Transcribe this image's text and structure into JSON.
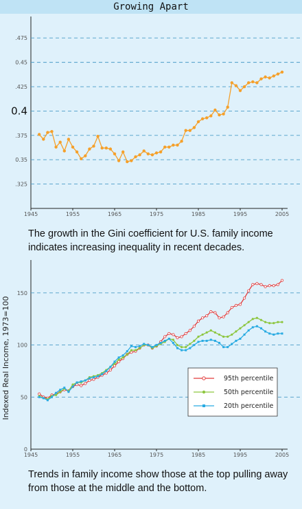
{
  "page": {
    "title": "Growing Apart",
    "caption1": "The growth in the Gini coefficient for U.S. family income indicates increasing inequality in recent decades.",
    "caption2": "Trends in family income show those at the top pulling away from those at the middle and the bottom."
  },
  "colors": {
    "background": "#dff1fb",
    "title_bar": "#bfe3f5",
    "gini": "#f5a02a",
    "p95": "#e23b3b",
    "p50": "#8dc63f",
    "p20": "#29abe2",
    "gridline": "#4a9cc7"
  },
  "chart_data": [
    {
      "type": "line",
      "title": "",
      "xlabel": "",
      "ylabel": "",
      "xlim": [
        1945,
        2005
      ],
      "ylim": [
        0.3,
        0.49
      ],
      "grid": true,
      "x_ticks": [
        "1945",
        "1955",
        "1965",
        "1975",
        "1985",
        "1995",
        "2005"
      ],
      "y_ticks": [
        {
          "label": ".325",
          "value": 0.325,
          "big": false
        },
        {
          "label": "0.35",
          "value": 0.35,
          "big": false
        },
        {
          "label": ".375",
          "value": 0.375,
          "big": false
        },
        {
          "label": "0.4",
          "value": 0.4,
          "big": true
        },
        {
          "label": ".425",
          "value": 0.425,
          "big": false
        },
        {
          "label": "0.45",
          "value": 0.45,
          "big": false
        },
        {
          "label": ".475",
          "value": 0.475,
          "big": false
        }
      ],
      "series": [
        {
          "color": "#f5a02a",
          "x": [
            1947,
            1948,
            1949,
            1950,
            1951,
            1952,
            1953,
            1954,
            1955,
            1956,
            1957,
            1958,
            1959,
            1960,
            1961,
            1962,
            1963,
            1964,
            1965,
            1966,
            1967,
            1968,
            1969,
            1970,
            1971,
            1972,
            1973,
            1974,
            1975,
            1976,
            1977,
            1978,
            1979,
            1980,
            1981,
            1982,
            1983,
            1984,
            1985,
            1986,
            1987,
            1988,
            1989,
            1990,
            1991,
            1992,
            1993,
            1994,
            1995,
            1996,
            1997,
            1998,
            1999,
            2000,
            2001,
            2002,
            2003,
            2004,
            2005
          ],
          "y": [
            0.376,
            0.371,
            0.378,
            0.379,
            0.363,
            0.368,
            0.359,
            0.371,
            0.363,
            0.358,
            0.351,
            0.354,
            0.361,
            0.364,
            0.374,
            0.362,
            0.362,
            0.361,
            0.356,
            0.349,
            0.358,
            0.348,
            0.349,
            0.353,
            0.355,
            0.359,
            0.356,
            0.355,
            0.357,
            0.358,
            0.363,
            0.363,
            0.365,
            0.365,
            0.369,
            0.38,
            0.38,
            0.383,
            0.389,
            0.392,
            0.393,
            0.395,
            0.401,
            0.396,
            0.397,
            0.404,
            0.429,
            0.426,
            0.421,
            0.425,
            0.429,
            0.43,
            0.429,
            0.433,
            0.435,
            0.434,
            0.436,
            0.438,
            0.44
          ]
        }
      ]
    },
    {
      "type": "line",
      "title": "",
      "xlabel": "",
      "ylabel": "Indexed Real Income, 1973=100",
      "xlim": [
        1945,
        2005
      ],
      "ylim": [
        0,
        175
      ],
      "grid": true,
      "x_ticks": [
        "1945",
        "1955",
        "1965",
        "1975",
        "1985",
        "1995",
        "2005"
      ],
      "y_ticks": [
        {
          "label": "0",
          "value": 0
        },
        {
          "label": "50",
          "value": 50
        },
        {
          "label": "100",
          "value": 100
        },
        {
          "label": "150",
          "value": 150
        }
      ],
      "legend": "inside-right",
      "series": [
        {
          "name": "95th percentile",
          "color": "#e23b3b",
          "marker": "circle",
          "x": [
            1947,
            1948,
            1949,
            1950,
            1951,
            1952,
            1953,
            1954,
            1955,
            1956,
            1957,
            1958,
            1959,
            1960,
            1961,
            1962,
            1963,
            1964,
            1965,
            1966,
            1967,
            1968,
            1969,
            1970,
            1971,
            1972,
            1973,
            1974,
            1975,
            1976,
            1977,
            1978,
            1979,
            1980,
            1981,
            1982,
            1983,
            1984,
            1985,
            1986,
            1987,
            1988,
            1989,
            1990,
            1991,
            1992,
            1993,
            1994,
            1995,
            1996,
            1997,
            1998,
            1999,
            2000,
            2001,
            2002,
            2003,
            2004,
            2005
          ],
          "y": [
            53,
            50,
            49,
            52,
            53,
            55,
            57,
            56,
            60,
            62,
            61,
            63,
            66,
            67,
            69,
            71,
            73,
            76,
            80,
            84,
            87,
            91,
            93,
            94,
            97,
            100,
            100,
            97,
            99,
            103,
            108,
            111,
            110,
            107,
            108,
            111,
            114,
            118,
            123,
            126,
            128,
            132,
            131,
            126,
            127,
            131,
            136,
            138,
            139,
            145,
            152,
            158,
            159,
            158,
            156,
            157,
            157,
            158,
            162
          ]
        },
        {
          "name": "50th percentile",
          "color": "#8dc63f",
          "marker": "diamond",
          "x": [
            1947,
            1948,
            1949,
            1950,
            1951,
            1952,
            1953,
            1954,
            1955,
            1956,
            1957,
            1958,
            1959,
            1960,
            1961,
            1962,
            1963,
            1964,
            1965,
            1966,
            1967,
            1968,
            1969,
            1970,
            1971,
            1972,
            1973,
            1974,
            1975,
            1976,
            1977,
            1978,
            1979,
            1980,
            1981,
            1982,
            1983,
            1984,
            1985,
            1986,
            1987,
            1988,
            1989,
            1990,
            1991,
            1992,
            1993,
            1994,
            1995,
            1996,
            1997,
            1998,
            1999,
            2000,
            2001,
            2002,
            2003,
            2004,
            2005
          ],
          "y": [
            51,
            49,
            48,
            51,
            52,
            55,
            58,
            56,
            62,
            64,
            64,
            66,
            69,
            70,
            71,
            73,
            76,
            79,
            82,
            86,
            88,
            91,
            95,
            95,
            97,
            100,
            100,
            97,
            99,
            101,
            103,
            106,
            105,
            100,
            98,
            98,
            101,
            104,
            108,
            110,
            112,
            114,
            112,
            110,
            108,
            108,
            110,
            113,
            116,
            119,
            122,
            125,
            126,
            124,
            122,
            121,
            121,
            122,
            122
          ]
        },
        {
          "name": "20th percentile",
          "color": "#29abe2",
          "marker": "square",
          "x": [
            1947,
            1948,
            1949,
            1950,
            1951,
            1952,
            1953,
            1954,
            1955,
            1956,
            1957,
            1958,
            1959,
            1960,
            1961,
            1962,
            1963,
            1964,
            1965,
            1966,
            1967,
            1968,
            1969,
            1970,
            1971,
            1972,
            1973,
            1974,
            1975,
            1976,
            1977,
            1978,
            1979,
            1980,
            1981,
            1982,
            1983,
            1984,
            1985,
            1986,
            1987,
            1988,
            1989,
            1990,
            1991,
            1992,
            1993,
            1994,
            1995,
            1996,
            1997,
            1998,
            1999,
            2000,
            2001,
            2002,
            2003,
            2004,
            2005
          ],
          "y": [
            50,
            49,
            47,
            50,
            54,
            57,
            59,
            55,
            60,
            64,
            65,
            66,
            68,
            69,
            70,
            72,
            75,
            79,
            84,
            88,
            90,
            94,
            99,
            98,
            99,
            101,
            100,
            98,
            100,
            102,
            104,
            106,
            102,
            97,
            95,
            95,
            97,
            100,
            103,
            104,
            104,
            105,
            104,
            102,
            98,
            98,
            101,
            104,
            106,
            110,
            114,
            117,
            118,
            116,
            113,
            111,
            110,
            111,
            111
          ]
        }
      ]
    }
  ]
}
